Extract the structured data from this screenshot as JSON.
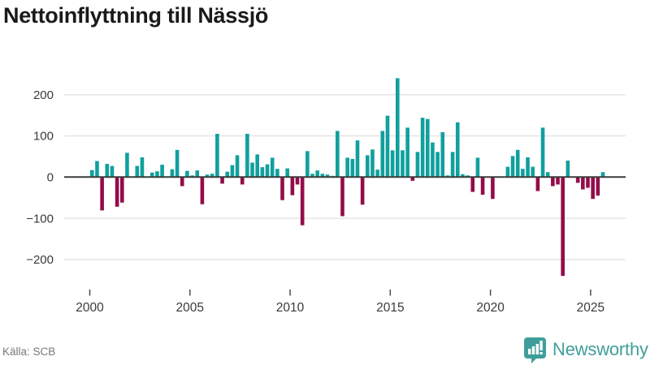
{
  "title": "Nettoinflyttning till Nässjö",
  "source": "Källa: SCB",
  "brand": {
    "name": "Newsworthy",
    "icon": "newsworthy-pin-bar-chart-icon",
    "color": "#3f9e9b"
  },
  "chart_data": {
    "type": "bar",
    "title": "Nettoinflyttning till Nässjö",
    "xlabel": "",
    "ylabel": "",
    "frequency": "quarterly",
    "x_range_start": "2000 Q1",
    "x_range_end": "2025 Q3",
    "ylim": [
      -260,
      260
    ],
    "grid": true,
    "legend": "none",
    "positive_color": "#10a09e",
    "negative_color": "#940c4a",
    "y_ticks": [
      {
        "value": 200,
        "label": "200"
      },
      {
        "value": 100,
        "label": "100"
      },
      {
        "value": 0,
        "label": "0"
      },
      {
        "value": -100,
        "label": "−100"
      },
      {
        "value": -200,
        "label": "−200"
      }
    ],
    "x_ticks": [
      {
        "year": 2000,
        "label": "2000"
      },
      {
        "year": 2005,
        "label": "2005"
      },
      {
        "year": 2010,
        "label": "2010"
      },
      {
        "year": 2015,
        "label": "2015"
      },
      {
        "year": 2020,
        "label": "2020"
      },
      {
        "year": 2025,
        "label": "2025"
      }
    ],
    "values_by_year": {
      "2000": [
        17,
        39,
        -81,
        32
      ],
      "2001": [
        27,
        -72,
        -62,
        59
      ],
      "2002": [
        0,
        27,
        48,
        0
      ],
      "2003": [
        11,
        14,
        30,
        0
      ],
      "2004": [
        19,
        66,
        -22,
        15
      ],
      "2005": [
        4,
        16,
        -66,
        6
      ],
      "2006": [
        8,
        105,
        -16,
        13
      ],
      "2007": [
        29,
        53,
        -18,
        105
      ],
      "2008": [
        35,
        55,
        24,
        31
      ],
      "2009": [
        47,
        20,
        -56,
        21
      ],
      "2010": [
        -44,
        -18,
        -117,
        63
      ],
      "2011": [
        8,
        16,
        8,
        6
      ],
      "2012": [
        3,
        112,
        -95,
        47
      ],
      "2013": [
        44,
        89,
        -67,
        53
      ],
      "2014": [
        67,
        18,
        112,
        149
      ],
      "2015": [
        65,
        240,
        65,
        120
      ],
      "2016": [
        -9,
        61,
        144,
        141
      ],
      "2017": [
        84,
        61,
        109,
        4
      ],
      "2018": [
        61,
        133,
        7,
        4
      ],
      "2019": [
        -36,
        47,
        -43,
        0
      ],
      "2020": [
        -53,
        0,
        0,
        25
      ],
      "2021": [
        51,
        66,
        20,
        48
      ],
      "2022": [
        25,
        -34,
        120,
        12
      ],
      "2023": [
        -22,
        -18,
        -240,
        40
      ],
      "2024": [
        0,
        -14,
        -30,
        -26
      ],
      "2025": [
        -53,
        -45,
        12
      ]
    }
  }
}
